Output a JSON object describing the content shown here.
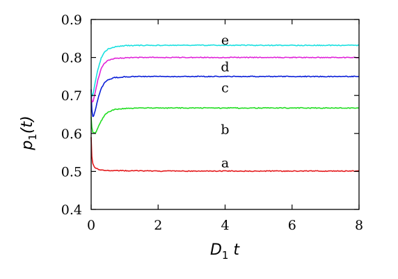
{
  "chart_data": {
    "type": "line",
    "title": "",
    "xlabel": {
      "base": "D",
      "sub": "1",
      "rest": " t"
    },
    "ylabel": {
      "base": "p",
      "sub": "1",
      "rest": "(t)"
    },
    "xlim": [
      0,
      8
    ],
    "ylim": [
      0.4,
      0.9
    ],
    "xticks": [
      0,
      2,
      4,
      6,
      8
    ],
    "yticks": [
      0.4,
      0.5,
      0.6,
      0.7,
      0.8,
      0.9
    ],
    "xtick_labels": [
      "0",
      "2",
      "4",
      "6",
      "8"
    ],
    "ytick_labels": [
      "0.4",
      "0.5",
      "0.6",
      "0.7",
      "0.8",
      "0.9"
    ],
    "grid": false,
    "legend": "none",
    "series": [
      {
        "label": "a",
        "color": "#e41a1c",
        "label_at": [
          4.0,
          0.522
        ],
        "points": [
          [
            0,
            0.59
          ],
          [
            0.02,
            0.54
          ],
          [
            0.05,
            0.52
          ],
          [
            0.1,
            0.511
          ],
          [
            0.2,
            0.506
          ],
          [
            0.3,
            0.504
          ],
          [
            0.5,
            0.502
          ],
          [
            1,
            0.502
          ],
          [
            2,
            0.501
          ],
          [
            3,
            0.501
          ],
          [
            4,
            0.501
          ],
          [
            5,
            0.501
          ],
          [
            6,
            0.501
          ],
          [
            7,
            0.501
          ],
          [
            8,
            0.501
          ]
        ]
      },
      {
        "label": "b",
        "color": "#22dd22",
        "label_at": [
          4.0,
          0.61
        ],
        "points": [
          [
            0,
            0.643
          ],
          [
            0.02,
            0.617
          ],
          [
            0.05,
            0.604
          ],
          [
            0.1,
            0.601
          ],
          [
            0.15,
            0.604
          ],
          [
            0.2,
            0.615
          ],
          [
            0.3,
            0.633
          ],
          [
            0.4,
            0.648
          ],
          [
            0.5,
            0.656
          ],
          [
            0.7,
            0.663
          ],
          [
            1,
            0.666
          ],
          [
            1.5,
            0.667
          ],
          [
            2,
            0.667
          ],
          [
            3,
            0.667
          ],
          [
            4,
            0.667
          ],
          [
            5,
            0.667
          ],
          [
            6,
            0.667
          ],
          [
            7,
            0.667
          ],
          [
            8,
            0.667
          ]
        ]
      },
      {
        "label": "c",
        "color": "#0a1fd8",
        "label_at": [
          4.0,
          0.72
        ],
        "points": [
          [
            0,
            0.715
          ],
          [
            0.02,
            0.662
          ],
          [
            0.05,
            0.645
          ],
          [
            0.08,
            0.646
          ],
          [
            0.12,
            0.66
          ],
          [
            0.2,
            0.69
          ],
          [
            0.3,
            0.718
          ],
          [
            0.4,
            0.734
          ],
          [
            0.5,
            0.741
          ],
          [
            0.7,
            0.747
          ],
          [
            1,
            0.749
          ],
          [
            1.5,
            0.75
          ],
          [
            2,
            0.75
          ],
          [
            3,
            0.75
          ],
          [
            4,
            0.75
          ],
          [
            5,
            0.75
          ],
          [
            6,
            0.75
          ],
          [
            7,
            0.75
          ],
          [
            8,
            0.75
          ]
        ]
      },
      {
        "label": "d",
        "color": "#e024d8",
        "label_at": [
          4.0,
          0.775
        ],
        "points": [
          [
            0,
            0.695
          ],
          [
            0.03,
            0.682
          ],
          [
            0.06,
            0.685
          ],
          [
            0.1,
            0.7
          ],
          [
            0.2,
            0.74
          ],
          [
            0.3,
            0.77
          ],
          [
            0.4,
            0.785
          ],
          [
            0.5,
            0.792
          ],
          [
            0.7,
            0.797
          ],
          [
            1,
            0.799
          ],
          [
            1.5,
            0.8
          ],
          [
            2,
            0.8
          ],
          [
            3,
            0.8
          ],
          [
            4,
            0.8
          ],
          [
            5,
            0.8
          ],
          [
            6,
            0.8
          ],
          [
            7,
            0.8
          ],
          [
            8,
            0.8
          ]
        ]
      },
      {
        "label": "e",
        "color": "#19e0e0",
        "label_at": [
          4.0,
          0.845
        ],
        "points": [
          [
            0,
            0.71
          ],
          [
            0.03,
            0.698
          ],
          [
            0.06,
            0.705
          ],
          [
            0.1,
            0.725
          ],
          [
            0.2,
            0.768
          ],
          [
            0.3,
            0.798
          ],
          [
            0.4,
            0.814
          ],
          [
            0.5,
            0.822
          ],
          [
            0.7,
            0.828
          ],
          [
            1,
            0.831
          ],
          [
            1.5,
            0.832
          ],
          [
            2,
            0.832
          ],
          [
            3,
            0.832
          ],
          [
            4,
            0.832
          ],
          [
            5,
            0.832
          ],
          [
            6,
            0.832
          ],
          [
            7,
            0.832
          ],
          [
            8,
            0.832
          ]
        ]
      }
    ]
  }
}
